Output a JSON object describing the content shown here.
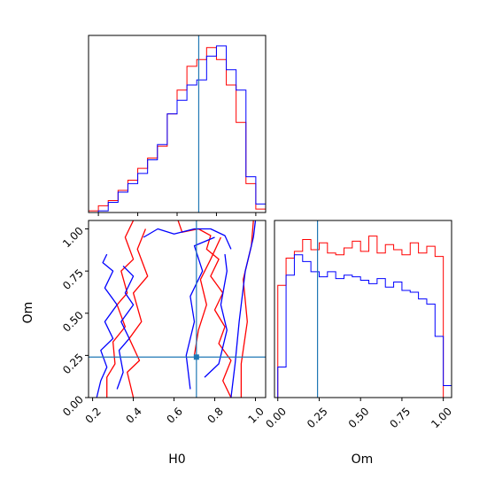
{
  "chart_data": [
    {
      "type": "histogram",
      "panel": "H0 marginal",
      "x_range": [
        0.15,
        1.05
      ],
      "truth_line": 0.71,
      "series": [
        {
          "color": "#ff0000",
          "edges": [
            0.15,
            0.2,
            0.25,
            0.3,
            0.35,
            0.4,
            0.45,
            0.5,
            0.55,
            0.6,
            0.65,
            0.7,
            0.75,
            0.8,
            0.85,
            0.9,
            0.95,
            1.0,
            1.05
          ],
          "values": [
            0.01,
            0.04,
            0.07,
            0.13,
            0.19,
            0.26,
            0.32,
            0.39,
            0.58,
            0.72,
            0.86,
            0.9,
            0.97,
            0.9,
            0.75,
            0.53,
            0.17,
            0.02
          ]
        },
        {
          "color": "#0000ff",
          "edges": [
            0.15,
            0.2,
            0.25,
            0.3,
            0.35,
            0.4,
            0.45,
            0.5,
            0.55,
            0.6,
            0.65,
            0.7,
            0.75,
            0.8,
            0.85,
            0.9,
            0.95,
            1.0,
            1.05
          ],
          "values": [
            0.0,
            0.01,
            0.06,
            0.12,
            0.17,
            0.23,
            0.31,
            0.4,
            0.58,
            0.66,
            0.75,
            0.78,
            0.92,
            0.98,
            0.84,
            0.72,
            0.21,
            0.05
          ]
        }
      ],
      "xticks": [
        0.2,
        0.4,
        0.6,
        0.8,
        1.0
      ]
    },
    {
      "type": "contour",
      "panel": "H0 vs Om",
      "xlabel": "H0",
      "ylabel": "Om",
      "xlim": [
        0.18,
        1.05
      ],
      "ylim": [
        0.0,
        1.05
      ],
      "xticks": [
        "0.2",
        "0.4",
        "0.6",
        "0.8",
        "1.0"
      ],
      "yticks": [
        "0.00",
        "0.25",
        "0.50",
        "0.75",
        "1.00"
      ],
      "truth": [
        0.71,
        0.24
      ],
      "series": [
        {
          "color": "#ff0000",
          "contours": [
            [
              [
                0.27,
                0.0
              ],
              [
                0.27,
                0.12
              ],
              [
                0.31,
                0.2
              ],
              [
                0.3,
                0.33
              ],
              [
                0.36,
                0.42
              ],
              [
                0.32,
                0.55
              ],
              [
                0.37,
                0.62
              ],
              [
                0.34,
                0.75
              ],
              [
                0.4,
                0.82
              ],
              [
                0.36,
                0.95
              ],
              [
                0.4,
                1.05
              ]
            ],
            [
              [
                0.4,
                0.0
              ],
              [
                0.37,
                0.15
              ],
              [
                0.43,
                0.22
              ],
              [
                0.38,
                0.35
              ],
              [
                0.44,
                0.45
              ],
              [
                0.4,
                0.62
              ],
              [
                0.47,
                0.72
              ],
              [
                0.42,
                0.88
              ],
              [
                0.46,
                1.0
              ]
            ],
            [
              [
                0.62,
                1.05
              ],
              [
                0.64,
                0.98
              ],
              [
                0.72,
                1.0
              ],
              [
                0.78,
                0.96
              ],
              [
                0.76,
                0.88
              ],
              [
                0.82,
                0.82
              ],
              [
                0.78,
                0.72
              ],
              [
                0.84,
                0.62
              ],
              [
                0.8,
                0.52
              ],
              [
                0.85,
                0.42
              ],
              [
                0.82,
                0.32
              ],
              [
                0.88,
                0.22
              ],
              [
                0.84,
                0.1
              ],
              [
                0.88,
                0.0
              ]
            ],
            [
              [
                0.7,
                0.25
              ],
              [
                0.72,
                0.4
              ],
              [
                0.76,
                0.55
              ],
              [
                0.73,
                0.7
              ],
              [
                0.78,
                0.82
              ],
              [
                0.83,
                0.95
              ]
            ],
            [
              [
                0.93,
                0.0
              ],
              [
                0.93,
                0.2
              ],
              [
                0.96,
                0.45
              ],
              [
                0.94,
                0.7
              ],
              [
                0.98,
                0.9
              ],
              [
                0.99,
                1.05
              ]
            ]
          ]
        },
        {
          "color": "#0000ff",
          "contours": [
            [
              [
                0.22,
                0.0
              ],
              [
                0.24,
                0.1
              ],
              [
                0.27,
                0.18
              ],
              [
                0.24,
                0.28
              ],
              [
                0.3,
                0.35
              ],
              [
                0.26,
                0.45
              ],
              [
                0.32,
                0.55
              ],
              [
                0.26,
                0.65
              ],
              [
                0.3,
                0.75
              ],
              [
                0.25,
                0.8
              ],
              [
                0.27,
                0.85
              ]
            ],
            [
              [
                0.32,
                0.05
              ],
              [
                0.35,
                0.15
              ],
              [
                0.33,
                0.28
              ],
              [
                0.38,
                0.35
              ],
              [
                0.34,
                0.45
              ],
              [
                0.4,
                0.55
              ],
              [
                0.36,
                0.62
              ],
              [
                0.4,
                0.72
              ],
              [
                0.35,
                0.78
              ]
            ],
            [
              [
                0.45,
                0.95
              ],
              [
                0.52,
                1.0
              ],
              [
                0.6,
                0.97
              ],
              [
                0.7,
                1.0
              ],
              [
                0.78,
                1.0
              ],
              [
                0.85,
                0.96
              ],
              [
                0.88,
                0.88
              ]
            ],
            [
              [
                0.68,
                0.05
              ],
              [
                0.66,
                0.25
              ],
              [
                0.7,
                0.45
              ],
              [
                0.68,
                0.6
              ],
              [
                0.74,
                0.75
              ],
              [
                0.7,
                0.9
              ],
              [
                0.8,
                0.95
              ]
            ],
            [
              [
                0.75,
                0.12
              ],
              [
                0.82,
                0.2
              ],
              [
                0.86,
                0.4
              ],
              [
                0.83,
                0.55
              ],
              [
                0.86,
                0.75
              ],
              [
                0.85,
                0.85
              ]
            ],
            [
              [
                0.88,
                0.0
              ],
              [
                0.9,
                0.2
              ],
              [
                0.92,
                0.45
              ],
              [
                0.95,
                0.75
              ],
              [
                0.99,
                0.95
              ],
              [
                1.0,
                1.05
              ]
            ]
          ]
        }
      ]
    },
    {
      "type": "histogram",
      "panel": "Om marginal",
      "xlabel": "Om",
      "x_range": [
        -0.02,
        1.05
      ],
      "truth_line": 0.24,
      "xticks": [
        "0.00",
        "0.25",
        "0.50",
        "0.75",
        "1.00"
      ],
      "series": [
        {
          "color": "#ff0000",
          "edges": [
            -0.02,
            0.0,
            0.05,
            0.1,
            0.15,
            0.2,
            0.25,
            0.3,
            0.35,
            0.4,
            0.45,
            0.5,
            0.55,
            0.6,
            0.65,
            0.7,
            0.75,
            0.8,
            0.85,
            0.9,
            0.95,
            1.0,
            1.05
          ],
          "values": [
            0.0,
            0.66,
            0.82,
            0.86,
            0.93,
            0.87,
            0.91,
            0.85,
            0.84,
            0.88,
            0.92,
            0.86,
            0.95,
            0.85,
            0.9,
            0.87,
            0.84,
            0.91,
            0.85,
            0.89,
            0.83,
            0.0
          ]
        },
        {
          "color": "#0000ff",
          "edges": [
            -0.02,
            0.0,
            0.05,
            0.1,
            0.15,
            0.2,
            0.25,
            0.3,
            0.35,
            0.4,
            0.45,
            0.5,
            0.55,
            0.6,
            0.65,
            0.7,
            0.75,
            0.8,
            0.85,
            0.9,
            0.95,
            1.0,
            1.05
          ],
          "values": [
            0.0,
            0.18,
            0.72,
            0.84,
            0.8,
            0.74,
            0.71,
            0.74,
            0.7,
            0.72,
            0.71,
            0.69,
            0.67,
            0.7,
            0.65,
            0.68,
            0.63,
            0.62,
            0.58,
            0.55,
            0.36,
            0.07
          ]
        }
      ]
    }
  ]
}
